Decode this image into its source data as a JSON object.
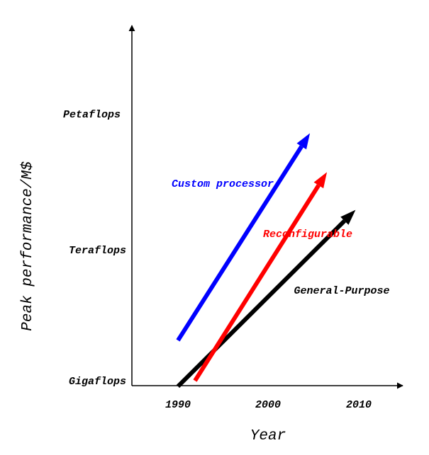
{
  "chart_data": {
    "type": "line",
    "title": "",
    "xlabel": "Year",
    "ylabel": "Peak performance/M$",
    "x_ticks": [
      1990,
      2000,
      2010
    ],
    "y_ticks": [
      "Gigaflops",
      "Teraflops",
      "Petaflops"
    ],
    "series": [
      {
        "name": "Custom processor",
        "color": "#0000ff",
        "points": [
          [
            1990,
            "Gigaflops+"
          ],
          [
            2005,
            "Petaflops-"
          ]
        ],
        "start_year": 1990,
        "end_year": 2005
      },
      {
        "name": "Reconfigurable",
        "color": "#ff0000",
        "start_year": 1992,
        "end_year": 2007
      },
      {
        "name": "General-Purpose",
        "color": "#000000",
        "start_year": 1990,
        "end_year": 2010
      }
    ]
  }
}
